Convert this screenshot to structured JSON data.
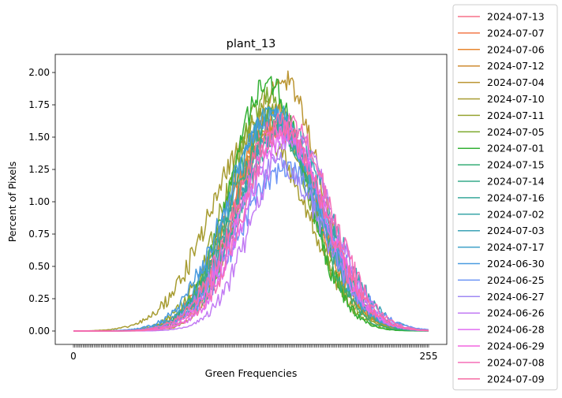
{
  "chart_data": {
    "type": "line",
    "title": "plant_13",
    "xlabel": "Green Frequencies",
    "ylabel": "Percent of Pixels",
    "xlim": [
      0,
      255
    ],
    "ylim": [
      -0.1,
      2.1
    ],
    "yticks": [
      0.0,
      0.25,
      0.5,
      0.75,
      1.0,
      1.25,
      1.5,
      1.75,
      2.0
    ],
    "ytick_labels": [
      "0.00",
      "0.25",
      "0.50",
      "0.75",
      "1.00",
      "1.25",
      "1.50",
      "1.75",
      "2.00"
    ],
    "x_tick_labels_visible": [
      "0",
      "255"
    ],
    "grid": false,
    "legend_position": "outside-right",
    "series": [
      {
        "name": "2024-07-13",
        "color": "#f77189",
        "center": 146,
        "sigma": 30,
        "peak": 1.62
      },
      {
        "name": "2024-07-07",
        "color": "#f3794a",
        "center": 144,
        "sigma": 31,
        "peak": 1.58
      },
      {
        "name": "2024-07-06",
        "color": "#e7862f",
        "center": 143,
        "sigma": 30,
        "peak": 1.7
      },
      {
        "name": "2024-07-12",
        "color": "#cf8b31",
        "center": 147,
        "sigma": 29,
        "peak": 1.6
      },
      {
        "name": "2024-07-04",
        "color": "#bb9532",
        "center": 150,
        "sigma": 27,
        "peak": 1.95
      },
      {
        "name": "2024-07-10",
        "color": "#a79c31",
        "center": 133,
        "sigma": 34,
        "peak": 1.55
      },
      {
        "name": "2024-07-11",
        "color": "#97a431",
        "center": 139,
        "sigma": 30,
        "peak": 1.7
      },
      {
        "name": "2024-07-05",
        "color": "#7fab31",
        "center": 140,
        "sigma": 28,
        "peak": 1.8
      },
      {
        "name": "2024-07-01",
        "color": "#33b035",
        "center": 140,
        "sigma": 27,
        "peak": 1.92
      },
      {
        "name": "2024-07-15",
        "color": "#36ad76",
        "center": 142,
        "sigma": 29,
        "peak": 1.65
      },
      {
        "name": "2024-07-14",
        "color": "#37aa8c",
        "center": 145,
        "sigma": 30,
        "peak": 1.6
      },
      {
        "name": "2024-07-16",
        "color": "#38a89b",
        "center": 150,
        "sigma": 30,
        "peak": 1.55
      },
      {
        "name": "2024-07-02",
        "color": "#3aa6a8",
        "center": 148,
        "sigma": 31,
        "peak": 1.55
      },
      {
        "name": "2024-07-03",
        "color": "#3ba3b6",
        "center": 151,
        "sigma": 32,
        "peak": 1.6
      },
      {
        "name": "2024-07-17",
        "color": "#3da0c8",
        "center": 144,
        "sigma": 31,
        "peak": 1.7
      },
      {
        "name": "2024-06-30",
        "color": "#4a9be0",
        "center": 142,
        "sigma": 32,
        "peak": 1.65
      },
      {
        "name": "2024-06-25",
        "color": "#6c94f5",
        "center": 152,
        "sigma": 33,
        "peak": 1.25
      },
      {
        "name": "2024-06-27",
        "color": "#9f88f4",
        "center": 147,
        "sigma": 32,
        "peak": 1.3
      },
      {
        "name": "2024-06-26",
        "color": "#c27bf4",
        "center": 158,
        "sigma": 28,
        "peak": 1.5
      },
      {
        "name": "2024-06-28",
        "color": "#e06ef2",
        "center": 152,
        "sigma": 29,
        "peak": 1.5
      },
      {
        "name": "2024-06-29",
        "color": "#f267e0",
        "center": 150,
        "sigma": 30,
        "peak": 1.55
      },
      {
        "name": "2024-07-08",
        "color": "#f56fb8",
        "center": 154,
        "sigma": 30,
        "peak": 1.62
      },
      {
        "name": "2024-07-09",
        "color": "#f66ca4",
        "center": 148,
        "sigma": 31,
        "peak": 1.6
      }
    ]
  }
}
